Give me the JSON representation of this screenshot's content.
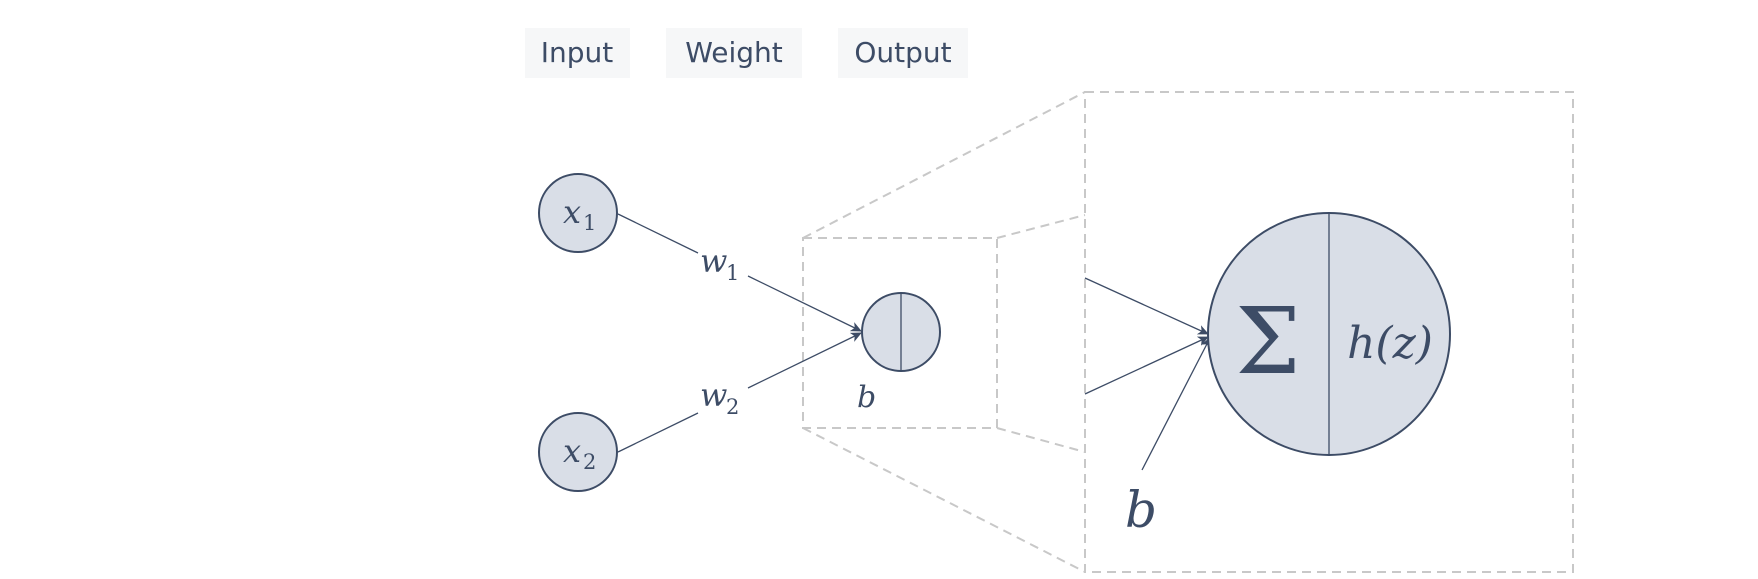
{
  "headers": {
    "input": "Input",
    "weight": "Weight",
    "output": "Output"
  },
  "nodes": {
    "x1_base": "x",
    "x1_sub": "1",
    "x2_base": "x",
    "x2_sub": "2"
  },
  "weights": {
    "w1_base": "w",
    "w1_sub": "1",
    "w2_base": "w",
    "w2_sub": "2"
  },
  "bias_small": "b",
  "bias_large": "b",
  "neuron": {
    "sum_symbol": "Σ",
    "activation": "h(z)"
  },
  "colors": {
    "ink": "#3d4c66",
    "node_fill": "#d9dee7",
    "dashed_box": "#c8c8c8",
    "header_bg": "#f6f7f8"
  }
}
